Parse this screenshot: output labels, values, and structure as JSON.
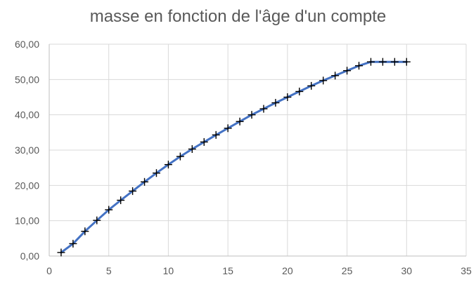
{
  "chart_data": {
    "type": "scatter",
    "title": "masse en fonction de l'âge d'un compte",
    "xlim": [
      0,
      35
    ],
    "ylim": [
      0,
      60
    ],
    "x_ticks": [
      0,
      5,
      10,
      15,
      20,
      25,
      30,
      35
    ],
    "x_tick_labels": [
      "0",
      "5",
      "10",
      "15",
      "20",
      "25",
      "30",
      "35"
    ],
    "y_ticks": [
      0,
      10,
      20,
      30,
      40,
      50,
      60
    ],
    "y_tick_labels": [
      "0,00",
      "10,00",
      "20,00",
      "30,00",
      "40,00",
      "50,00",
      "60,00"
    ],
    "grid": true,
    "legend": "none",
    "line_color": "#4472c4",
    "marker_color": "#000000",
    "marker": "plus",
    "series": [
      {
        "x": [
          1,
          2,
          3,
          4,
          5,
          6,
          7,
          8,
          9,
          10,
          11,
          12,
          13,
          14,
          15,
          16,
          17,
          18,
          19,
          20,
          21,
          22,
          23,
          24,
          25,
          26,
          27,
          28,
          29,
          30
        ],
        "y": [
          1.0,
          3.5,
          7.0,
          10.1,
          13.1,
          15.8,
          18.4,
          21.0,
          23.5,
          25.9,
          28.2,
          30.3,
          32.3,
          34.3,
          36.2,
          38.1,
          40.0,
          41.7,
          43.4,
          45.0,
          46.6,
          48.2,
          49.7,
          51.1,
          52.5,
          53.9,
          55.0,
          55.0,
          55.0,
          55.0
        ]
      }
    ]
  }
}
